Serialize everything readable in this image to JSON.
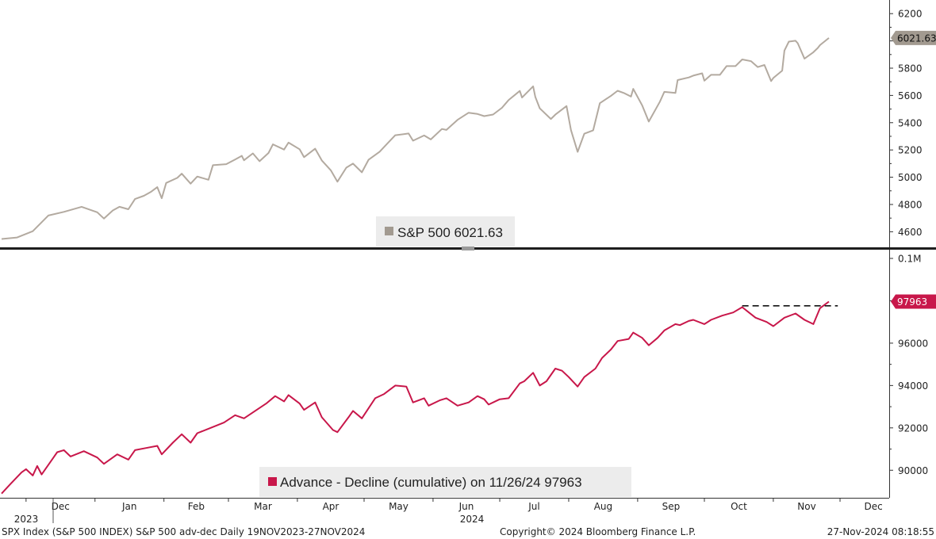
{
  "colors": {
    "sp500_line": "#b3aaa0",
    "sp500_tag": "#a29a90",
    "advdec_line": "#c8174a",
    "advdec_tag": "#c8174a",
    "divider": "#1e1e1e",
    "legend_bg": "#ececec",
    "reference_line": "#111111"
  },
  "footer": {
    "left": "SPX Index (S&P 500 INDEX) S&P 500 adv-dec  Daily 19NOV2023-27NOV2024",
    "center": "Copyright© 2024 Bloomberg Finance L.P.",
    "right": "27-Nov-2024 08:18:55"
  },
  "chart_data": [
    {
      "type": "line",
      "name": "sp500",
      "legend": "S&P 500 6021.63",
      "last_value_label": "6021.63",
      "ylim": [
        4480,
        6300
      ],
      "y_ticks": [
        "4600",
        "4800",
        "5000",
        "5200",
        "5400",
        "5600",
        "5800",
        "6000",
        "6200"
      ],
      "grid": false,
      "x_range": [
        "2023-11-20",
        "2024-11-26"
      ],
      "series": [
        {
          "name": "S&P 500",
          "points": [
            [
              "2023-11-20",
              4547
            ],
            [
              "2023-11-27",
              4558
            ],
            [
              "2023-12-04",
              4604
            ],
            [
              "2023-12-11",
              4719
            ],
            [
              "2023-12-18",
              4746
            ],
            [
              "2023-12-26",
              4783
            ],
            [
              "2024-01-02",
              4743
            ],
            [
              "2024-01-05",
              4697
            ],
            [
              "2024-01-09",
              4756
            ],
            [
              "2024-01-12",
              4783
            ],
            [
              "2024-01-16",
              4765
            ],
            [
              "2024-01-19",
              4840
            ],
            [
              "2024-01-23",
              4864
            ],
            [
              "2024-01-26",
              4891
            ],
            [
              "2024-01-29",
              4927
            ],
            [
              "2024-01-31",
              4846
            ],
            [
              "2024-02-02",
              4958
            ],
            [
              "2024-02-07",
              4995
            ],
            [
              "2024-02-09",
              5026
            ],
            [
              "2024-02-13",
              4953
            ],
            [
              "2024-02-16",
              5005
            ],
            [
              "2024-02-21",
              4981
            ],
            [
              "2024-02-23",
              5088
            ],
            [
              "2024-02-29",
              5096
            ],
            [
              "2024-03-04",
              5130
            ],
            [
              "2024-03-07",
              5157
            ],
            [
              "2024-03-08",
              5124
            ],
            [
              "2024-03-12",
              5175
            ],
            [
              "2024-03-15",
              5117
            ],
            [
              "2024-03-19",
              5178
            ],
            [
              "2024-03-21",
              5241
            ],
            [
              "2024-03-26",
              5203
            ],
            [
              "2024-03-28",
              5254
            ],
            [
              "2024-04-02",
              5205
            ],
            [
              "2024-04-04",
              5147
            ],
            [
              "2024-04-09",
              5209
            ],
            [
              "2024-04-12",
              5123
            ],
            [
              "2024-04-16",
              5051
            ],
            [
              "2024-04-19",
              4967
            ],
            [
              "2024-04-23",
              5070
            ],
            [
              "2024-04-26",
              5100
            ],
            [
              "2024-04-30",
              5036
            ],
            [
              "2024-05-03",
              5128
            ],
            [
              "2024-05-08",
              5187
            ],
            [
              "2024-05-10",
              5222
            ],
            [
              "2024-05-15",
              5308
            ],
            [
              "2024-05-21",
              5321
            ],
            [
              "2024-05-23",
              5268
            ],
            [
              "2024-05-28",
              5306
            ],
            [
              "2024-05-31",
              5277
            ],
            [
              "2024-06-05",
              5354
            ],
            [
              "2024-06-07",
              5347
            ],
            [
              "2024-06-12",
              5421
            ],
            [
              "2024-06-17",
              5473
            ],
            [
              "2024-06-21",
              5464
            ],
            [
              "2024-06-24",
              5448
            ],
            [
              "2024-06-28",
              5460
            ],
            [
              "2024-07-02",
              5509
            ],
            [
              "2024-07-05",
              5567
            ],
            [
              "2024-07-10",
              5633
            ],
            [
              "2024-07-11",
              5584
            ],
            [
              "2024-07-16",
              5667
            ],
            [
              "2024-07-17",
              5588
            ],
            [
              "2024-07-19",
              5505
            ],
            [
              "2024-07-24",
              5427
            ],
            [
              "2024-07-26",
              5459
            ],
            [
              "2024-07-31",
              5522
            ],
            [
              "2024-08-02",
              5346
            ],
            [
              "2024-08-05",
              5186
            ],
            [
              "2024-08-08",
              5319
            ],
            [
              "2024-08-12",
              5344
            ],
            [
              "2024-08-15",
              5543
            ],
            [
              "2024-08-20",
              5597
            ],
            [
              "2024-08-23",
              5634
            ],
            [
              "2024-08-26",
              5616
            ],
            [
              "2024-08-29",
              5592
            ],
            [
              "2024-08-30",
              5648
            ],
            [
              "2024-09-03",
              5528
            ],
            [
              "2024-09-06",
              5408
            ],
            [
              "2024-09-11",
              5554
            ],
            [
              "2024-09-13",
              5626
            ],
            [
              "2024-09-18",
              5618
            ],
            [
              "2024-09-19",
              5713
            ],
            [
              "2024-09-24",
              5732
            ],
            [
              "2024-09-26",
              5745
            ],
            [
              "2024-09-30",
              5762
            ],
            [
              "2024-10-01",
              5708
            ],
            [
              "2024-10-04",
              5751
            ],
            [
              "2024-10-08",
              5751
            ],
            [
              "2024-10-11",
              5815
            ],
            [
              "2024-10-15",
              5815
            ],
            [
              "2024-10-18",
              5864
            ],
            [
              "2024-10-22",
              5851
            ],
            [
              "2024-10-25",
              5808
            ],
            [
              "2024-10-28",
              5823
            ],
            [
              "2024-10-31",
              5705
            ],
            [
              "2024-11-01",
              5728
            ],
            [
              "2024-11-05",
              5782
            ],
            [
              "2024-11-06",
              5929
            ],
            [
              "2024-11-08",
              5995
            ],
            [
              "2024-11-11",
              6001
            ],
            [
              "2024-11-12",
              5983
            ],
            [
              "2024-11-15",
              5870
            ],
            [
              "2024-11-19",
              5917
            ],
            [
              "2024-11-21",
              5948
            ],
            [
              "2024-11-22",
              5969
            ],
            [
              "2024-11-26",
              6021.63
            ]
          ]
        }
      ]
    },
    {
      "type": "line",
      "name": "advance-decline",
      "legend": "Advance - Decline (cumulative) on 11/26/24 97963",
      "last_value_label": "97963",
      "ylim": [
        88700,
        100300
      ],
      "y_ticks": [
        "90000",
        "92000",
        "94000",
        "96000",
        "0.1M"
      ],
      "y_tick_values": [
        90000,
        92000,
        94000,
        96000,
        100000
      ],
      "grid": false,
      "reference_line": {
        "style": "dashed",
        "value": 97763,
        "from": "2024-10-18",
        "to": "2024-11-30"
      },
      "x_range": [
        "2023-11-20",
        "2024-11-26"
      ],
      "x_month_labels": [
        "Dec",
        "Jan",
        "Feb",
        "Mar",
        "Apr",
        "May",
        "Jun",
        "Jul",
        "Aug",
        "Sep",
        "Oct",
        "Nov",
        "Dec"
      ],
      "x_year_labels": [
        "2023",
        "2024"
      ],
      "series": [
        {
          "name": "Advance - Decline (cumulative)",
          "points": [
            [
              "2023-11-20",
              88900
            ],
            [
              "2023-11-24",
              89350
            ],
            [
              "2023-11-29",
              89900
            ],
            [
              "2023-12-01",
              90050
            ],
            [
              "2023-12-04",
              89750
            ],
            [
              "2023-12-06",
              90200
            ],
            [
              "2023-12-08",
              89800
            ],
            [
              "2023-12-13",
              90550
            ],
            [
              "2023-12-15",
              90850
            ],
            [
              "2023-12-18",
              90950
            ],
            [
              "2023-12-21",
              90650
            ],
            [
              "2023-12-27",
              90900
            ],
            [
              "2024-01-02",
              90600
            ],
            [
              "2024-01-05",
              90300
            ],
            [
              "2024-01-11",
              90750
            ],
            [
              "2024-01-16",
              90500
            ],
            [
              "2024-01-19",
              90950
            ],
            [
              "2024-01-24",
              91050
            ],
            [
              "2024-01-29",
              91150
            ],
            [
              "2024-01-31",
              90750
            ],
            [
              "2024-02-05",
              91300
            ],
            [
              "2024-02-09",
              91700
            ],
            [
              "2024-02-13",
              91300
            ],
            [
              "2024-02-16",
              91750
            ],
            [
              "2024-02-22",
              92000
            ],
            [
              "2024-02-28",
              92250
            ],
            [
              "2024-03-04",
              92600
            ],
            [
              "2024-03-08",
              92450
            ],
            [
              "2024-03-13",
              92800
            ],
            [
              "2024-03-18",
              93150
            ],
            [
              "2024-03-22",
              93500
            ],
            [
              "2024-03-26",
              93250
            ],
            [
              "2024-03-28",
              93550
            ],
            [
              "2024-04-02",
              93150
            ],
            [
              "2024-04-04",
              92850
            ],
            [
              "2024-04-09",
              93200
            ],
            [
              "2024-04-12",
              92500
            ],
            [
              "2024-04-17",
              91900
            ],
            [
              "2024-04-19",
              91800
            ],
            [
              "2024-04-24",
              92500
            ],
            [
              "2024-04-26",
              92800
            ],
            [
              "2024-04-30",
              92450
            ],
            [
              "2024-05-06",
              93400
            ],
            [
              "2024-05-10",
              93600
            ],
            [
              "2024-05-15",
              94000
            ],
            [
              "2024-05-20",
              93950
            ],
            [
              "2024-05-23",
              93200
            ],
            [
              "2024-05-28",
              93400
            ],
            [
              "2024-05-30",
              93050
            ],
            [
              "2024-06-04",
              93300
            ],
            [
              "2024-06-07",
              93400
            ],
            [
              "2024-06-12",
              93050
            ],
            [
              "2024-06-17",
              93200
            ],
            [
              "2024-06-21",
              93500
            ],
            [
              "2024-06-24",
              93350
            ],
            [
              "2024-06-26",
              93100
            ],
            [
              "2024-07-01",
              93350
            ],
            [
              "2024-07-05",
              93400
            ],
            [
              "2024-07-10",
              94100
            ],
            [
              "2024-07-12",
              94200
            ],
            [
              "2024-07-16",
              94600
            ],
            [
              "2024-07-19",
              94000
            ],
            [
              "2024-07-22",
              94200
            ],
            [
              "2024-07-26",
              94800
            ],
            [
              "2024-07-29",
              94700
            ],
            [
              "2024-08-01",
              94400
            ],
            [
              "2024-08-05",
              93950
            ],
            [
              "2024-08-08",
              94400
            ],
            [
              "2024-08-13",
              94800
            ],
            [
              "2024-08-16",
              95300
            ],
            [
              "2024-08-20",
              95700
            ],
            [
              "2024-08-23",
              96100
            ],
            [
              "2024-08-28",
              96200
            ],
            [
              "2024-08-30",
              96500
            ],
            [
              "2024-09-03",
              96250
            ],
            [
              "2024-09-06",
              95900
            ],
            [
              "2024-09-10",
              96250
            ],
            [
              "2024-09-13",
              96600
            ],
            [
              "2024-09-18",
              96900
            ],
            [
              "2024-09-20",
              96850
            ],
            [
              "2024-09-24",
              97050
            ],
            [
              "2024-09-26",
              97100
            ],
            [
              "2024-10-01",
              96900
            ],
            [
              "2024-10-04",
              97100
            ],
            [
              "2024-10-09",
              97300
            ],
            [
              "2024-10-14",
              97450
            ],
            [
              "2024-10-18",
              97700
            ],
            [
              "2024-10-21",
              97450
            ],
            [
              "2024-10-24",
              97200
            ],
            [
              "2024-10-29",
              97000
            ],
            [
              "2024-11-01",
              96800
            ],
            [
              "2024-11-06",
              97200
            ],
            [
              "2024-11-11",
              97400
            ],
            [
              "2024-11-15",
              97100
            ],
            [
              "2024-11-19",
              96900
            ],
            [
              "2024-11-22",
              97650
            ],
            [
              "2024-11-26",
              97963
            ]
          ]
        }
      ]
    }
  ]
}
